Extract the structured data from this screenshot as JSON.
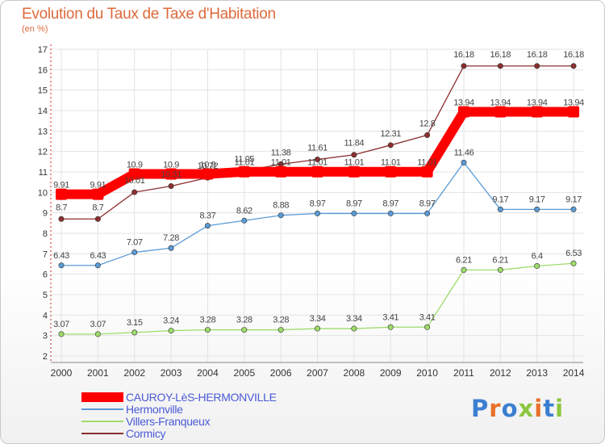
{
  "page": {
    "title": "Evolution du Taux de Taxe d'Habitation",
    "unit": "(en %)",
    "logo": "Proxiti"
  },
  "logo_colors": [
    "#3b7fd1",
    "#e8712a",
    "#3b7fd1",
    "#8cc63f",
    "#e8712a",
    "#3b7fd1",
    "#8cc63f"
  ],
  "chart_data": {
    "type": "line",
    "title": "Evolution du Taux de Taxe d'Habitation",
    "ylabel": "(en %)",
    "xlabel": "",
    "x": [
      2000,
      2001,
      2002,
      2003,
      2004,
      2005,
      2006,
      2007,
      2008,
      2009,
      2010,
      2011,
      2012,
      2013,
      2014
    ],
    "ylim": [
      2,
      17
    ],
    "yticks": [
      2,
      3,
      4,
      5,
      6,
      7,
      8,
      9,
      10,
      11,
      12,
      13,
      14,
      15,
      16,
      17
    ],
    "legend_position": "bottom-left",
    "series": [
      {
        "name": "CAUROY-LèS-HERMONVILLE",
        "color": "#ff0000",
        "values": [
          9.91,
          9.91,
          10.9,
          10.9,
          10.9,
          11.01,
          11.01,
          11.01,
          11.01,
          11.01,
          11.01,
          13.94,
          13.94,
          13.94,
          13.94
        ],
        "labels": [
          "9.91",
          "9.91",
          "10.9",
          "10.9",
          "10.9",
          "11.01",
          "11.01",
          "11.01",
          "11.01",
          "11.01",
          "11.01",
          "13.94",
          "13.94",
          "13.94",
          "13.94"
        ]
      },
      {
        "name": "Hermonville",
        "color": "#5a9bd5",
        "values": [
          6.43,
          6.43,
          7.07,
          7.28,
          8.37,
          8.62,
          8.88,
          8.97,
          8.97,
          8.97,
          8.97,
          11.46,
          9.17,
          9.17,
          9.17
        ],
        "labels": [
          "6.43",
          "6.43",
          "7.07",
          "7.28",
          "8.37",
          "8.62",
          "8.88",
          "8.97",
          "8.97",
          "8.97",
          "8.97",
          "11.46",
          "9.17",
          "9.17",
          "9.17"
        ]
      },
      {
        "name": "Villers-Franqueux",
        "color": "#9edc6a",
        "values": [
          3.07,
          3.07,
          3.15,
          3.24,
          3.28,
          3.28,
          3.28,
          3.34,
          3.34,
          3.41,
          3.41,
          6.21,
          6.21,
          6.4,
          6.53
        ],
        "labels": [
          "3.07",
          "3.07",
          "3.15",
          "3.24",
          "3.28",
          "3.28",
          "3.28",
          "3.34",
          "3.34",
          "3.41",
          "3.41",
          "6.21",
          "6.21",
          "6.4",
          "6.53"
        ]
      },
      {
        "name": "Cormicy",
        "color": "#8b2f2f",
        "values": [
          8.7,
          8.7,
          10.01,
          10.31,
          10.72,
          11.05,
          11.38,
          11.61,
          11.84,
          12.31,
          12.8,
          16.18,
          16.18,
          16.18,
          16.18
        ],
        "labels": [
          "8.7",
          "8.7",
          "10.01",
          "10.31",
          "10.72",
          "11.05",
          "11.38",
          "11.61",
          "11.84",
          "12.31",
          "12.8",
          "16.18",
          "16.18",
          "16.18",
          "16.18"
        ]
      }
    ]
  }
}
